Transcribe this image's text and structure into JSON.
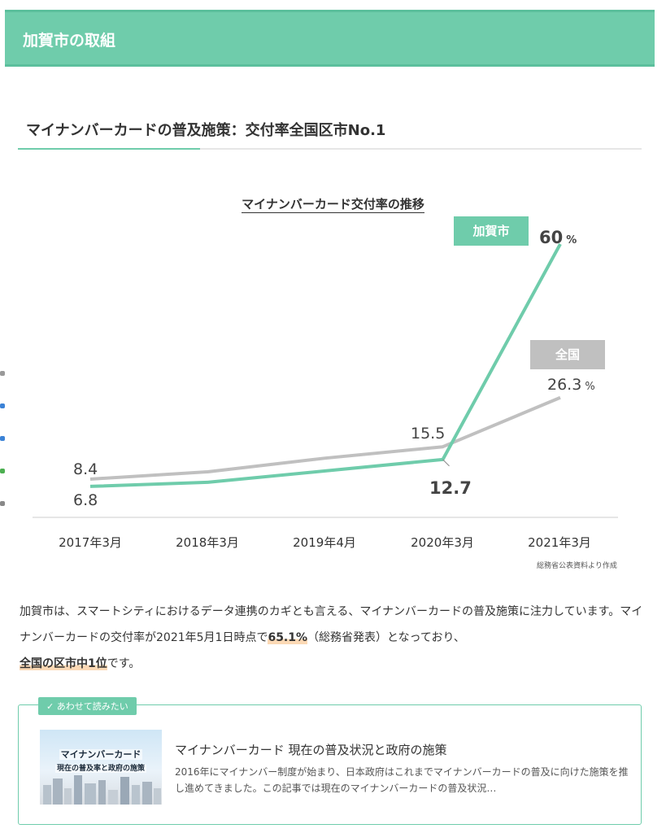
{
  "header": {
    "title": "加賀市の取組"
  },
  "subheading": "マイナンバーカードの普及施策：交付率全国区市No.1",
  "chart_data": {
    "type": "line",
    "title": "マイナンバーカード交付率の推移",
    "categories": [
      "2017年3月",
      "2018年3月",
      "2019年4月",
      "2020年3月",
      "2021年3月"
    ],
    "series": [
      {
        "name": "加賀市",
        "color": "#6fccab",
        "x_positions": [
          0,
          1,
          2,
          3,
          4
        ],
        "values": [
          6.8,
          7.7,
          10.2,
          12.7,
          60.0
        ]
      },
      {
        "name": "全国",
        "color": "#c0c0c0",
        "x_positions": [
          0,
          1,
          2,
          3,
          4
        ],
        "values": [
          8.4,
          10.0,
          13.0,
          15.5,
          26.3
        ]
      }
    ],
    "data_labels": {
      "kaga_start": "6.8",
      "kaga_2020": "12.7",
      "kaga_end": "60",
      "all_start": "8.4",
      "all_2020": "15.5",
      "all_end": "26.3"
    },
    "unit": "%",
    "ylim": [
      0,
      70
    ],
    "grid": false,
    "legend": "inline",
    "source": "総務省公表資料より作成"
  },
  "paragraph": {
    "p1": "加賀市は、スマートシティにおけるデータ連携のカギとも言える、マイナンバーカードの普及施策に注力しています。マイナンバーカードの交付率が2021年5月1日時点で",
    "hl1": "65.1%",
    "p2": "（総務省発表）となっており、",
    "hl2": "全国の区市中1位",
    "p3": "です。"
  },
  "related": {
    "tag": "✓ あわせて読みたい",
    "thumb_line1": "マイナンバーカード",
    "thumb_line2": "現在の普及率と政府の施策",
    "title": "マイナンバーカード 現在の普及状況と政府の施策",
    "desc": "2016年にマイナンバー制度が始まり、日本政府はこれまでマイナンバーカードの普及に向けた施策を推し進めてきました。この記事では現在のマイナンバーカードの普及状況…"
  }
}
